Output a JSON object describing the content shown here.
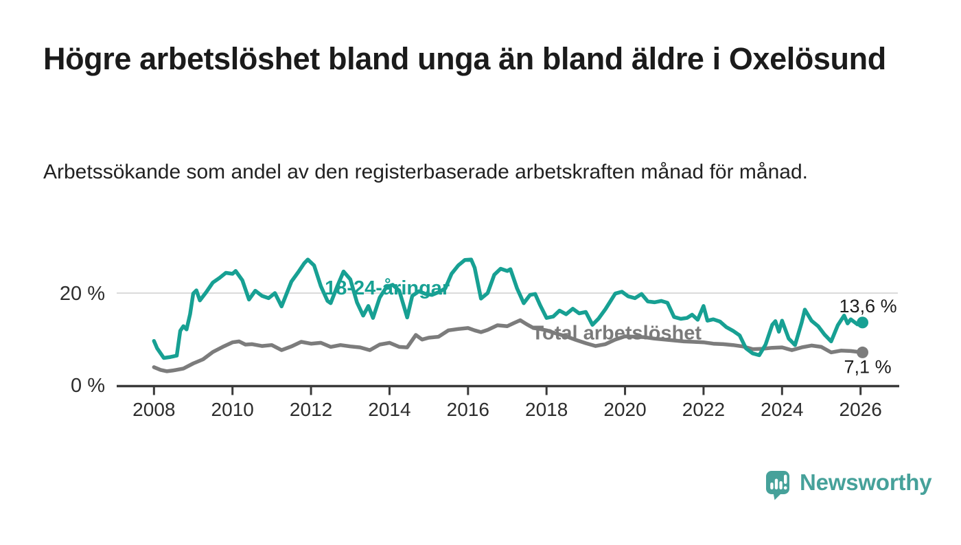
{
  "header": {
    "title": "Högre arbetslöshet bland unga än bland äldre i Oxelösund",
    "subtitle": "Arbetssökande som andel av den registerbaserade arbetskraften månad för månad."
  },
  "colors": {
    "accent_teal": "#17A093",
    "line_gray": "#7C7C7C",
    "label_gray": "#7A7A7A",
    "end_label_text": "#1B1B1B",
    "axis": "#3A3A3A",
    "tick_text": "#2D2D2D",
    "grid": "#DBDBDB",
    "logo_teal": "#46A19A",
    "background": "#FFFFFF"
  },
  "chart_data": {
    "type": "line",
    "title": "Högre arbetslöshet bland unga än bland äldre i Oxelösund",
    "xlabel": "",
    "ylabel": "",
    "unit": "%",
    "grid": "horizontal-20-only",
    "legend_position": "inline-labels-on-chart",
    "ylim": [
      0,
      28
    ],
    "x_axis": {
      "range": [
        2007.05,
        2026.95
      ],
      "tick_years": [
        2008,
        2010,
        2012,
        2014,
        2016,
        2018,
        2020,
        2022,
        2024,
        2026
      ]
    },
    "y_axis": {
      "ticks": [
        {
          "value": 0,
          "label": "0 %"
        },
        {
          "value": 20,
          "label": "20 %"
        }
      ]
    },
    "series": [
      {
        "id": "total",
        "name": "Total arbetslöshet",
        "color": "#7C7C7C",
        "label_color": "#7A7A7A",
        "end_label": "7,1 %",
        "end_value": 7.1,
        "label_anchor": {
          "x": 2017.62,
          "y": 11.4
        },
        "points": [
          [
            2008.0,
            3.9
          ],
          [
            2008.17,
            3.3
          ],
          [
            2008.33,
            3.0
          ],
          [
            2008.5,
            3.2
          ],
          [
            2008.75,
            3.6
          ],
          [
            2009.0,
            4.7
          ],
          [
            2009.25,
            5.6
          ],
          [
            2009.5,
            7.2
          ],
          [
            2009.75,
            8.3
          ],
          [
            2010.0,
            9.3
          ],
          [
            2010.17,
            9.5
          ],
          [
            2010.33,
            8.8
          ],
          [
            2010.5,
            8.9
          ],
          [
            2010.75,
            8.5
          ],
          [
            2011.0,
            8.7
          ],
          [
            2011.25,
            7.6
          ],
          [
            2011.5,
            8.4
          ],
          [
            2011.75,
            9.4
          ],
          [
            2012.0,
            9.0
          ],
          [
            2012.25,
            9.2
          ],
          [
            2012.5,
            8.3
          ],
          [
            2012.75,
            8.7
          ],
          [
            2013.0,
            8.4
          ],
          [
            2013.25,
            8.2
          ],
          [
            2013.5,
            7.6
          ],
          [
            2013.75,
            8.8
          ],
          [
            2014.0,
            9.2
          ],
          [
            2014.25,
            8.3
          ],
          [
            2014.45,
            8.2
          ],
          [
            2014.67,
            10.9
          ],
          [
            2014.83,
            9.9
          ],
          [
            2015.0,
            10.3
          ],
          [
            2015.25,
            10.5
          ],
          [
            2015.5,
            11.9
          ],
          [
            2015.75,
            12.2
          ],
          [
            2016.0,
            12.4
          ],
          [
            2016.17,
            11.9
          ],
          [
            2016.33,
            11.5
          ],
          [
            2016.5,
            12.0
          ],
          [
            2016.75,
            13.0
          ],
          [
            2017.0,
            12.8
          ],
          [
            2017.17,
            13.5
          ],
          [
            2017.33,
            14.1
          ],
          [
            2017.5,
            13.2
          ],
          [
            2017.67,
            12.4
          ],
          [
            2017.83,
            12.2
          ],
          [
            2018.0,
            11.9
          ],
          [
            2018.25,
            11.2
          ],
          [
            2018.5,
            10.6
          ],
          [
            2018.75,
            9.8
          ],
          [
            2019.0,
            9.1
          ],
          [
            2019.25,
            8.5
          ],
          [
            2019.5,
            8.9
          ],
          [
            2019.75,
            9.9
          ],
          [
            2020.0,
            10.6
          ],
          [
            2020.25,
            10.5
          ],
          [
            2020.5,
            10.4
          ],
          [
            2020.75,
            10.1
          ],
          [
            2021.0,
            9.9
          ],
          [
            2021.25,
            9.7
          ],
          [
            2021.5,
            9.5
          ],
          [
            2021.75,
            9.4
          ],
          [
            2022.0,
            9.3
          ],
          [
            2022.25,
            9.0
          ],
          [
            2022.5,
            8.9
          ],
          [
            2022.75,
            8.7
          ],
          [
            2023.0,
            8.4
          ],
          [
            2023.25,
            7.8
          ],
          [
            2023.5,
            7.9
          ],
          [
            2023.75,
            8.1
          ],
          [
            2024.0,
            8.2
          ],
          [
            2024.25,
            7.6
          ],
          [
            2024.5,
            8.2
          ],
          [
            2024.75,
            8.6
          ],
          [
            2025.0,
            8.3
          ],
          [
            2025.25,
            7.1
          ],
          [
            2025.5,
            7.5
          ],
          [
            2025.75,
            7.4
          ],
          [
            2026.05,
            7.1
          ]
        ]
      },
      {
        "id": "youth",
        "name": "18-24-åringar",
        "color": "#17A093",
        "label_color": "#17A093",
        "end_label": "13,6 %",
        "end_value": 13.6,
        "label_anchor": {
          "x": 2012.35,
          "y": 21.2
        },
        "points": [
          [
            2008.0,
            9.6
          ],
          [
            2008.08,
            8.0
          ],
          [
            2008.25,
            5.9
          ],
          [
            2008.42,
            6.1
          ],
          [
            2008.58,
            6.4
          ],
          [
            2008.67,
            11.8
          ],
          [
            2008.75,
            12.8
          ],
          [
            2008.83,
            12.1
          ],
          [
            2008.92,
            15.4
          ],
          [
            2009.0,
            19.9
          ],
          [
            2009.08,
            20.6
          ],
          [
            2009.17,
            18.4
          ],
          [
            2009.33,
            20.2
          ],
          [
            2009.5,
            22.3
          ],
          [
            2009.67,
            23.3
          ],
          [
            2009.83,
            24.4
          ],
          [
            2010.0,
            24.2
          ],
          [
            2010.08,
            24.8
          ],
          [
            2010.25,
            22.8
          ],
          [
            2010.42,
            18.6
          ],
          [
            2010.58,
            20.5
          ],
          [
            2010.75,
            19.4
          ],
          [
            2010.92,
            18.9
          ],
          [
            2011.08,
            20.0
          ],
          [
            2011.25,
            17.1
          ],
          [
            2011.5,
            22.5
          ],
          [
            2011.67,
            24.5
          ],
          [
            2011.83,
            26.5
          ],
          [
            2011.92,
            27.3
          ],
          [
            2012.08,
            26.0
          ],
          [
            2012.25,
            21.5
          ],
          [
            2012.42,
            18.3
          ],
          [
            2012.5,
            17.8
          ],
          [
            2012.67,
            21.5
          ],
          [
            2012.83,
            24.7
          ],
          [
            2013.0,
            23.0
          ],
          [
            2013.17,
            18.0
          ],
          [
            2013.33,
            15.1
          ],
          [
            2013.46,
            17.2
          ],
          [
            2013.58,
            14.6
          ],
          [
            2013.75,
            19.0
          ],
          [
            2013.92,
            21.3
          ],
          [
            2014.08,
            21.8
          ],
          [
            2014.25,
            20.5
          ],
          [
            2014.45,
            14.7
          ],
          [
            2014.58,
            19.4
          ],
          [
            2014.75,
            20.4
          ],
          [
            2014.92,
            19.8
          ],
          [
            2015.08,
            19.6
          ],
          [
            2015.25,
            20.2
          ],
          [
            2015.42,
            21.0
          ],
          [
            2015.58,
            24.2
          ],
          [
            2015.75,
            26.0
          ],
          [
            2015.92,
            27.2
          ],
          [
            2016.08,
            27.3
          ],
          [
            2016.17,
            25.5
          ],
          [
            2016.33,
            18.8
          ],
          [
            2016.5,
            20.0
          ],
          [
            2016.67,
            24.0
          ],
          [
            2016.83,
            25.3
          ],
          [
            2017.0,
            24.8
          ],
          [
            2017.08,
            25.2
          ],
          [
            2017.25,
            21.0
          ],
          [
            2017.42,
            17.8
          ],
          [
            2017.58,
            19.6
          ],
          [
            2017.71,
            19.8
          ],
          [
            2017.83,
            17.5
          ],
          [
            2018.0,
            14.6
          ],
          [
            2018.17,
            14.9
          ],
          [
            2018.33,
            16.2
          ],
          [
            2018.5,
            15.4
          ],
          [
            2018.67,
            16.6
          ],
          [
            2018.83,
            15.6
          ],
          [
            2019.0,
            15.9
          ],
          [
            2019.17,
            13.1
          ],
          [
            2019.33,
            14.5
          ],
          [
            2019.5,
            16.5
          ],
          [
            2019.75,
            19.9
          ],
          [
            2019.92,
            20.3
          ],
          [
            2020.08,
            19.3
          ],
          [
            2020.25,
            18.9
          ],
          [
            2020.42,
            19.8
          ],
          [
            2020.58,
            18.2
          ],
          [
            2020.75,
            18.0
          ],
          [
            2020.92,
            18.3
          ],
          [
            2021.08,
            17.9
          ],
          [
            2021.25,
            14.8
          ],
          [
            2021.42,
            14.4
          ],
          [
            2021.58,
            14.6
          ],
          [
            2021.71,
            15.3
          ],
          [
            2021.85,
            14.2
          ],
          [
            2022.0,
            17.2
          ],
          [
            2022.1,
            14.0
          ],
          [
            2022.25,
            14.3
          ],
          [
            2022.42,
            13.8
          ],
          [
            2022.58,
            12.6
          ],
          [
            2022.75,
            11.8
          ],
          [
            2022.92,
            10.8
          ],
          [
            2023.08,
            8.0
          ],
          [
            2023.25,
            6.9
          ],
          [
            2023.42,
            6.5
          ],
          [
            2023.58,
            8.8
          ],
          [
            2023.75,
            13.1
          ],
          [
            2023.83,
            13.9
          ],
          [
            2023.92,
            11.6
          ],
          [
            2024.0,
            14.0
          ],
          [
            2024.17,
            10.1
          ],
          [
            2024.33,
            8.7
          ],
          [
            2024.5,
            13.6
          ],
          [
            2024.58,
            16.4
          ],
          [
            2024.75,
            14.0
          ],
          [
            2024.92,
            12.8
          ],
          [
            2025.08,
            11.0
          ],
          [
            2025.25,
            9.5
          ],
          [
            2025.42,
            13.0
          ],
          [
            2025.58,
            15.1
          ],
          [
            2025.67,
            13.4
          ],
          [
            2025.75,
            14.3
          ],
          [
            2025.92,
            13.2
          ],
          [
            2026.05,
            13.6
          ]
        ]
      }
    ]
  },
  "footer": {
    "brand": "Newsworthy"
  }
}
